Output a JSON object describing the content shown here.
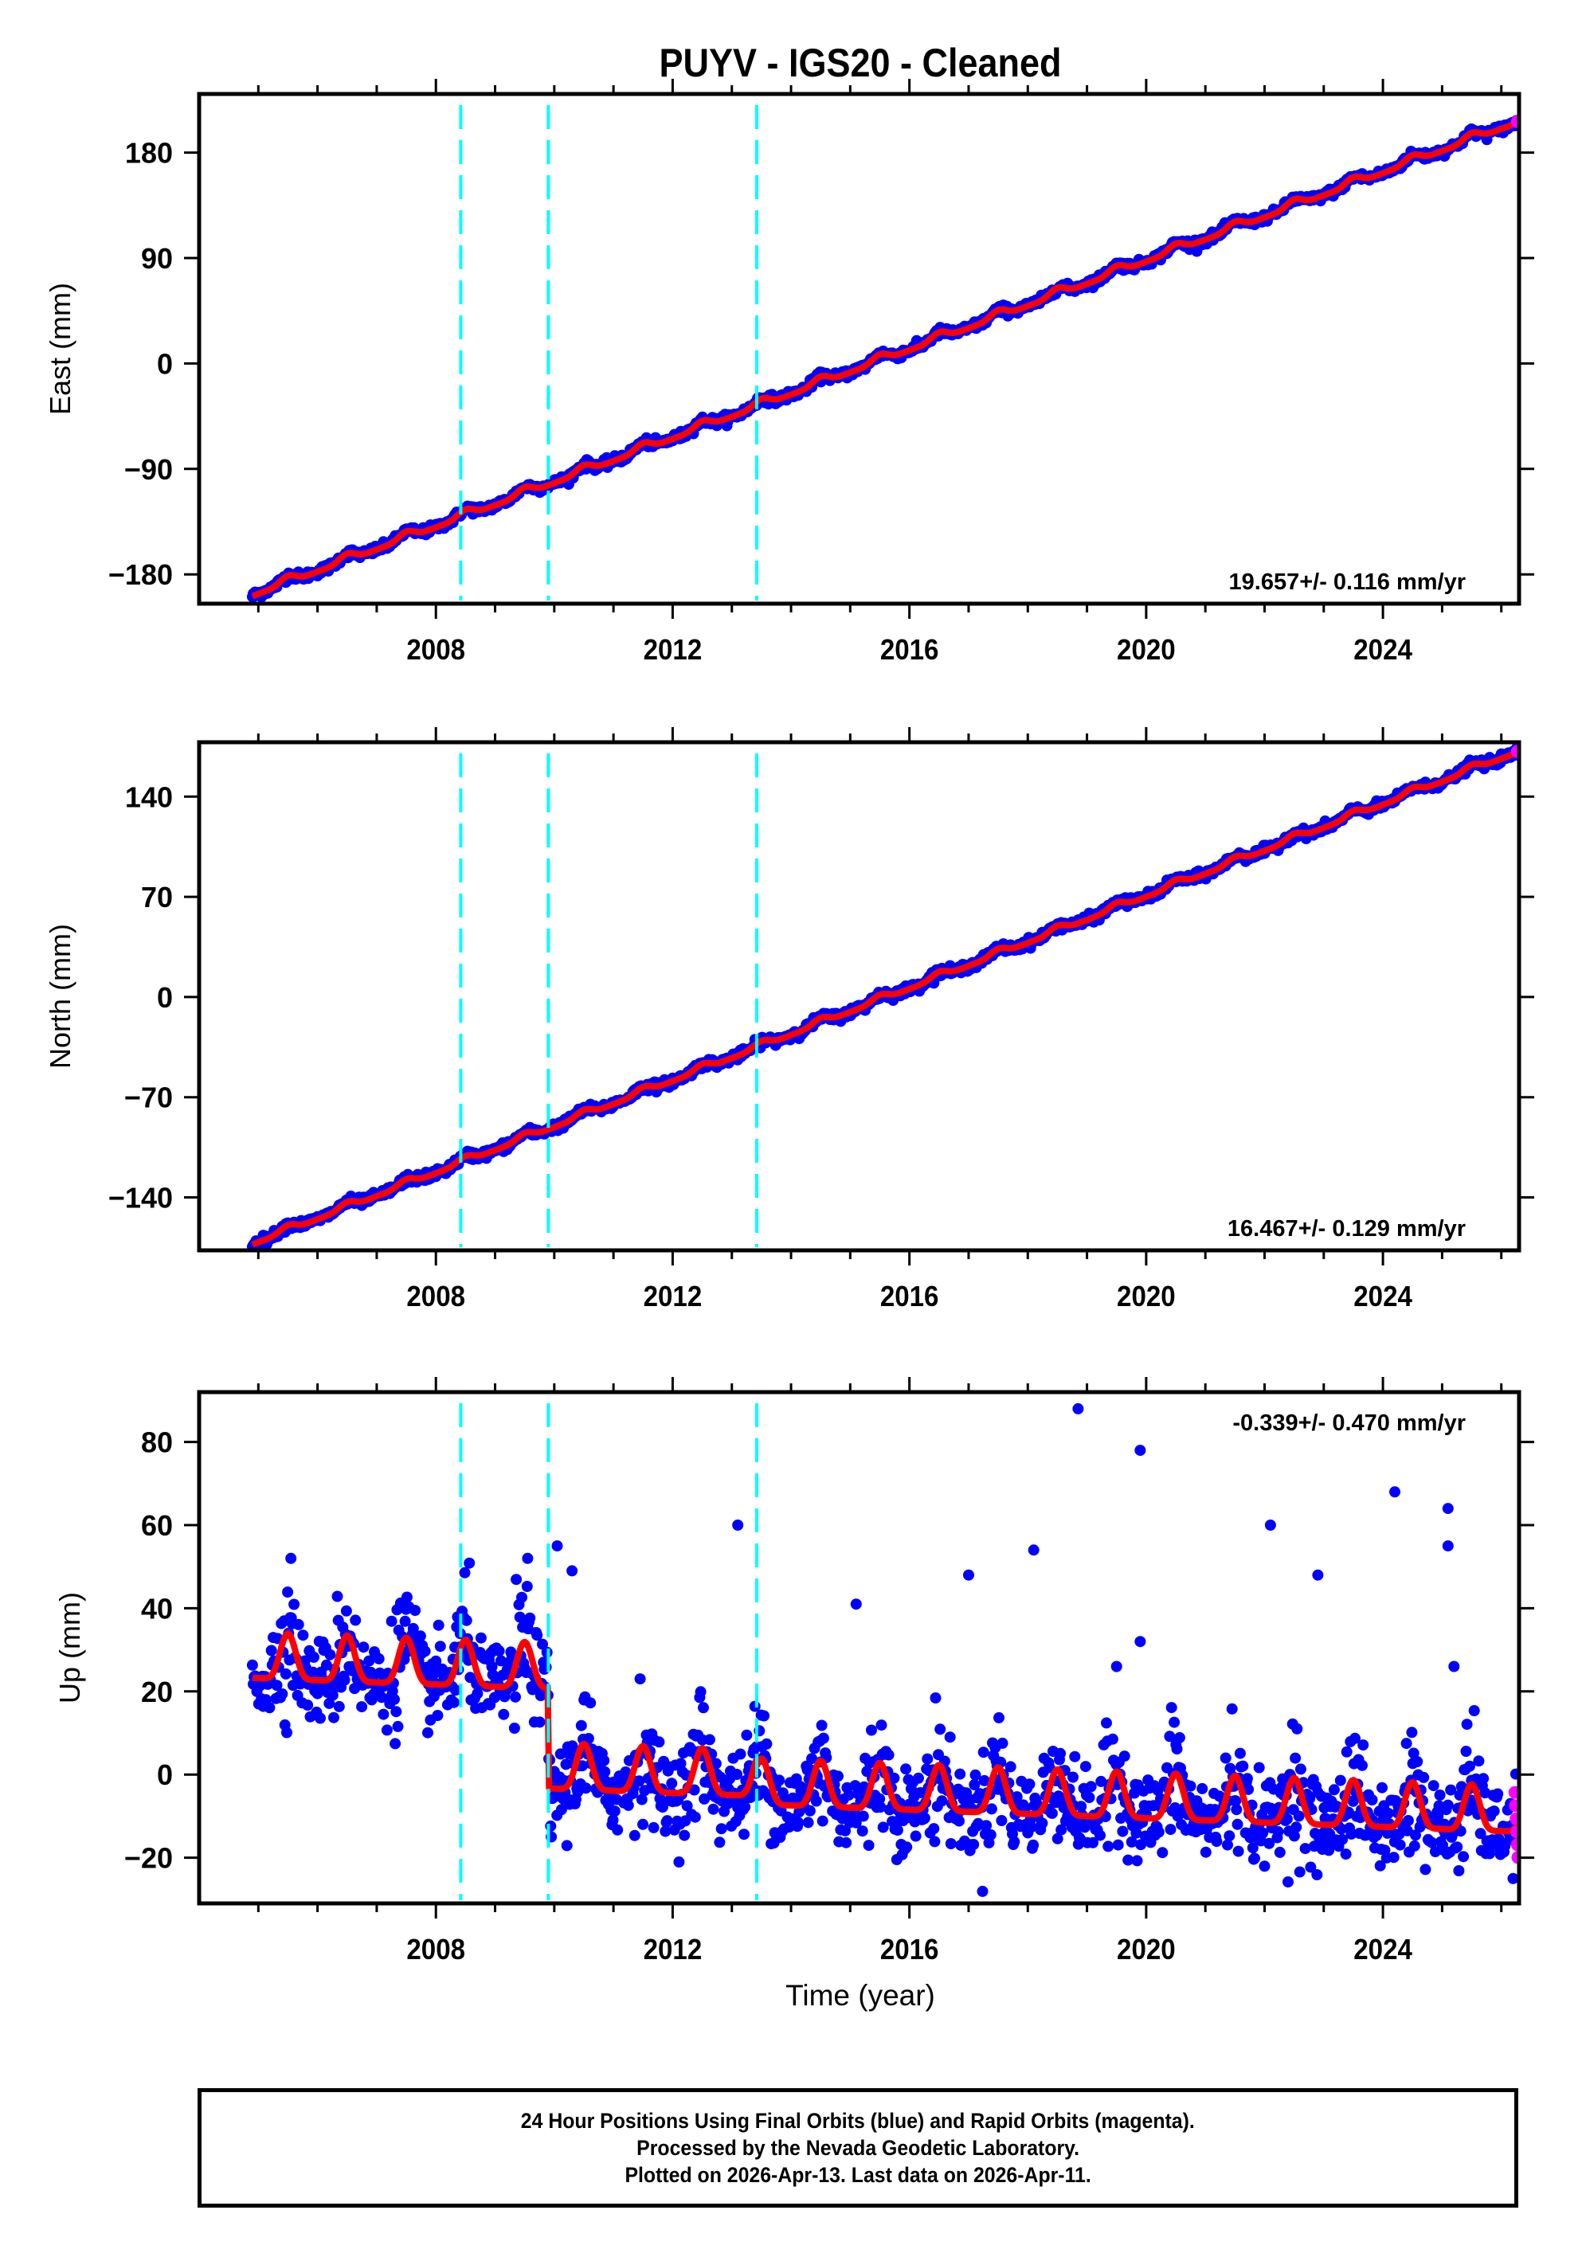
{
  "chart_data": {
    "type": "scatter",
    "title": "PUYV  - IGS20 - Cleaned",
    "xlabel": "Time (year)",
    "xlim": [
      2004.0,
      2026.3
    ],
    "xticks_major": [
      2008,
      2012,
      2016,
      2020,
      2024
    ],
    "xtick_labels": [
      "2008",
      "2012",
      "2016",
      "2020",
      "2024"
    ],
    "xticks_minor_step": 1,
    "offset_lines": [
      2008.42,
      2009.9,
      2013.42
    ],
    "colors": {
      "final": "#0000ff",
      "rapid": "#ff00ff",
      "model": "#ff0000",
      "offset_line": "#00ffff",
      "frame": "#000000"
    },
    "panels": [
      {
        "id": "east",
        "ylabel": "East (mm)",
        "ylim": [
          -205,
          230
        ],
        "yticks": [
          180,
          90,
          0,
          -90,
          -180
        ],
        "ytick_labels": [
          "180",
          "90",
          "0",
          "−90",
          "−180"
        ],
        "rate_label": "19.657+/- 0.116 mm/yr",
        "rate_position": "bottom-right",
        "start": [
          2004.9,
          -197
        ],
        "end": [
          2026.28,
          207
        ],
        "annual_amp": 3,
        "scatter_mm": 3,
        "steps": []
      },
      {
        "id": "north",
        "ylabel": "North (mm)",
        "ylim": [
          -177,
          178
        ],
        "yticks": [
          140,
          70,
          0,
          -70,
          -140
        ],
        "ytick_labels": [
          "140",
          "70",
          "0",
          "−70",
          "−140"
        ],
        "rate_label": "16.467+/- 0.129 mm/yr",
        "rate_position": "bottom-right",
        "start": [
          2004.9,
          -172
        ],
        "end": [
          2026.28,
          172
        ],
        "annual_amp": 2,
        "scatter_mm": 2.5,
        "steps": []
      },
      {
        "id": "up",
        "ylabel": "Up (mm)",
        "ylim": [
          -31,
          92
        ],
        "yticks": [
          80,
          60,
          40,
          20,
          0,
          -20
        ],
        "ytick_labels": [
          "80",
          "60",
          "40",
          "20",
          "0",
          "−20"
        ],
        "rate_label": "-0.339+/- 0.470 mm/yr",
        "rate_position": "top-right",
        "start": [
          2004.9,
          26
        ],
        "end": [
          2026.28,
          -11
        ],
        "annual_amp": 5.5,
        "scatter_mm": 5,
        "steps": [
          [
            2009.9,
            -24
          ],
          [
            2013.42,
            -2
          ]
        ],
        "outliers": [
          [
            2005.55,
            52
          ],
          [
            2009.55,
            52
          ],
          [
            2010.05,
            55
          ],
          [
            2010.3,
            49
          ],
          [
            2013.1,
            60
          ],
          [
            2015.1,
            41
          ],
          [
            2017.0,
            48
          ],
          [
            2018.1,
            54
          ],
          [
            2018.85,
            88
          ],
          [
            2019.9,
            78
          ],
          [
            2019.5,
            26
          ],
          [
            2019.9,
            32
          ],
          [
            2022.1,
            60
          ],
          [
            2022.9,
            48
          ],
          [
            2024.2,
            68
          ],
          [
            2025.1,
            64
          ],
          [
            2025.1,
            55
          ],
          [
            2025.2,
            26
          ],
          [
            2009.95,
            -15
          ]
        ]
      }
    ]
  },
  "footer": {
    "line1": "24 Hour Positions Using Final Orbits (blue) and Rapid Orbits (magenta).",
    "line2": "Processed by the Nevada Geodetic Laboratory.",
    "line3": "Plotted on 2026-Apr-13. Last data on 2026-Apr-11."
  }
}
